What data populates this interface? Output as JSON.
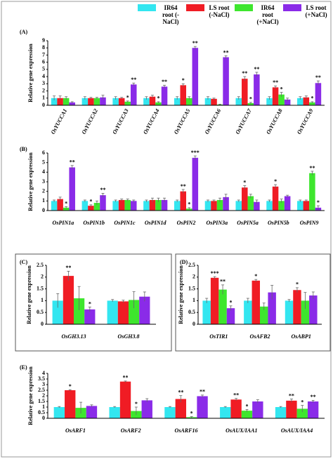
{
  "legend": [
    {
      "name": "IR64 root (-NaCl)",
      "color": "#33e6f0"
    },
    {
      "name": "LS root (-NaCl)",
      "color": "#f01c24"
    },
    {
      "name": "IR64 root (+NaCl)",
      "color": "#3ee62e"
    },
    {
      "name": "LS root (+NaCl)",
      "color": "#8a2be8"
    }
  ],
  "chart_data": [
    {
      "type": "bar",
      "panel_label": "(A)",
      "ylabel": "Relative gene expression",
      "ylim": [
        0,
        9
      ],
      "yticks": [
        0,
        1,
        2,
        3,
        4,
        5,
        6,
        7,
        8,
        9
      ],
      "categories": [
        "OsYUCCA1",
        "OsYUCCA2",
        "OsYUCCA3",
        "OsYUCCA4",
        "OsYUCCA5",
        "OsYUCCA6",
        "OsYUCCA7",
        "OsYUCCA8",
        "OsYUCCA9"
      ],
      "series": [
        {
          "values": [
            1,
            1,
            1,
            1,
            1,
            1,
            1,
            1,
            1
          ],
          "errors": [
            0.3,
            0.2,
            0.2,
            0.2,
            0.2,
            0.2,
            0.2,
            0.2,
            0.2
          ],
          "labels": [
            null,
            null,
            null,
            null,
            null,
            null,
            null,
            null,
            null
          ]
        },
        {
          "values": [
            1,
            1,
            1,
            1.2,
            2.8,
            0.9,
            3.7,
            2.5,
            1.1
          ],
          "errors": [
            0.3,
            0.1,
            0.1,
            0.2,
            0.2,
            0.1,
            0.3,
            0.2,
            0.2
          ],
          "labels": [
            null,
            null,
            null,
            null,
            "*",
            null,
            "**",
            "**",
            null
          ]
        },
        {
          "values": [
            1,
            1,
            0.5,
            0.4,
            1,
            0.1,
            0.3,
            1.5,
            0.4
          ],
          "errors": [
            0.2,
            0.1,
            0.1,
            0.1,
            0.2,
            0.05,
            0.1,
            0.3,
            0.1
          ],
          "labels": [
            null,
            null,
            "*",
            "*",
            null,
            null,
            "*",
            "*",
            "*"
          ]
        },
        {
          "values": [
            0.4,
            1.1,
            2.9,
            2.6,
            8,
            6.7,
            4.3,
            0.8,
            3.1
          ],
          "errors": [
            0.1,
            0.3,
            0.2,
            0.2,
            0.2,
            0.2,
            0.3,
            0.2,
            0.3
          ],
          "labels": [
            null,
            null,
            "**",
            "**",
            "**",
            "**",
            "**",
            null,
            "**"
          ]
        }
      ]
    },
    {
      "type": "bar",
      "panel_label": "(B)",
      "ylabel": "Relative gene expression",
      "ylim": [
        0,
        6
      ],
      "yticks": [
        0,
        1,
        2,
        3,
        4,
        5,
        6
      ],
      "categories": [
        "OsPIN1a",
        "OsPIN1b",
        "OsPIN1c",
        "OsPIN1d",
        "OsPIN2",
        "OsPIN3a",
        "OsPIN5a",
        "OsPIN5b",
        "OsPIN9"
      ],
      "series": [
        {
          "values": [
            1,
            1,
            1,
            1,
            1,
            1,
            1,
            1,
            1
          ],
          "errors": [
            0.1,
            0.1,
            0.1,
            0.1,
            0.1,
            0.1,
            0.1,
            0.1,
            0.1
          ],
          "labels": [
            null,
            null,
            null,
            null,
            null,
            null,
            null,
            null,
            null
          ]
        },
        {
          "values": [
            1.2,
            0.5,
            1.1,
            1.1,
            2,
            1,
            2.4,
            2.5,
            1
          ],
          "errors": [
            0.2,
            0.1,
            0.1,
            0.2,
            0.2,
            0.1,
            0.2,
            0.2,
            0.1
          ],
          "labels": [
            null,
            "*",
            null,
            null,
            "**",
            null,
            "*",
            "*",
            null
          ]
        },
        {
          "values": [
            0.3,
            0.8,
            1.1,
            1.1,
            0.2,
            1.1,
            1.5,
            1,
            3.9
          ],
          "errors": [
            0.1,
            0.2,
            0.1,
            0.2,
            0.1,
            0.2,
            0.2,
            0.2,
            0.2
          ],
          "labels": [
            "*",
            null,
            null,
            null,
            "*",
            null,
            null,
            null,
            "**"
          ]
        },
        {
          "values": [
            4.5,
            1.6,
            1,
            1.1,
            5.5,
            1.4,
            0.9,
            1.5,
            0.3
          ],
          "errors": [
            0.2,
            0.2,
            0.1,
            0.2,
            0.2,
            0.3,
            0.2,
            0.1,
            0.2
          ],
          "labels": [
            "**",
            "**",
            null,
            null,
            "***",
            null,
            null,
            null,
            "*"
          ]
        }
      ]
    },
    {
      "type": "bar",
      "panel_label": "(C)",
      "ylabel": "Relative gene expression",
      "ylim": [
        0,
        2.5
      ],
      "yticks": [
        0,
        0.5,
        1,
        1.5,
        2,
        2.5
      ],
      "categories": [
        "OsGH3.13",
        "OsGH3.8"
      ],
      "series": [
        {
          "values": [
            1,
            1
          ],
          "errors": [
            0.3,
            0.05
          ],
          "labels": [
            null,
            null
          ]
        },
        {
          "values": [
            2.05,
            0.97
          ],
          "errors": [
            0.2,
            0.05
          ],
          "labels": [
            "**",
            null
          ]
        },
        {
          "values": [
            1.1,
            1.03
          ],
          "errors": [
            0.5,
            0.35
          ],
          "labels": [
            null,
            null
          ]
        },
        {
          "values": [
            0.63,
            1.17
          ],
          "errors": [
            0.1,
            0.2
          ],
          "labels": [
            "*",
            null
          ]
        }
      ]
    },
    {
      "type": "bar",
      "panel_label": "(D)",
      "ylabel": "Relative gene expression",
      "ylim": [
        0,
        2.5
      ],
      "yticks": [
        0,
        0.5,
        1,
        1.5,
        2,
        2.5
      ],
      "categories": [
        "OsTIR1",
        "OsAFB2",
        "OsABP1"
      ],
      "series": [
        {
          "values": [
            1,
            1,
            1
          ],
          "errors": [
            0.1,
            0.1,
            0.05
          ],
          "labels": [
            null,
            null,
            null
          ]
        },
        {
          "values": [
            1.97,
            1.85,
            1.45
          ],
          "errors": [
            0.05,
            0.05,
            0.1
          ],
          "labels": [
            "***",
            "*",
            "*"
          ]
        },
        {
          "values": [
            1.47,
            0.75,
            1
          ],
          "errors": [
            0.2,
            0.15,
            0.35
          ],
          "labels": [
            "**",
            null,
            null
          ]
        },
        {
          "values": [
            0.68,
            1.35,
            1.22
          ],
          "errors": [
            0.1,
            0.3,
            0.15
          ],
          "labels": [
            "*",
            null,
            null
          ]
        }
      ]
    },
    {
      "type": "bar",
      "panel_label": "(E)",
      "ylabel": "Relative gene expression",
      "ylim": [
        0,
        4
      ],
      "yticks": [
        0,
        0.5,
        1,
        1.5,
        2,
        2.5,
        3,
        3.5,
        4
      ],
      "categories": [
        "OsARF1",
        "OsARF2",
        "OsARF16",
        "OsAUX/IAA1",
        "OsAUX/IAA4"
      ],
      "series": [
        {
          "values": [
            1,
            1,
            1,
            1,
            1
          ],
          "errors": [
            0.05,
            0.05,
            0.05,
            0.05,
            0.05
          ],
          "labels": [
            null,
            null,
            null,
            null,
            null
          ]
        },
        {
          "values": [
            2.5,
            3.27,
            1.72,
            1.67,
            1.57
          ],
          "errors": [
            0.05,
            0.05,
            0.3,
            0.1,
            0.15
          ],
          "labels": [
            "*",
            "**",
            "**",
            "**",
            "**"
          ]
        },
        {
          "values": [
            0.93,
            0.65,
            0.1,
            0.68,
            0.85
          ],
          "errors": [
            0.5,
            0.35,
            0.05,
            0.1,
            0.3
          ],
          "labels": [
            null,
            "*",
            "*",
            "*",
            "*"
          ]
        },
        {
          "values": [
            1.1,
            1.6,
            1.97,
            1.5,
            1.5
          ],
          "errors": [
            0.1,
            0.15,
            0.1,
            0.15,
            0.1
          ],
          "labels": [
            null,
            null,
            "**",
            null,
            "**"
          ]
        }
      ]
    }
  ]
}
